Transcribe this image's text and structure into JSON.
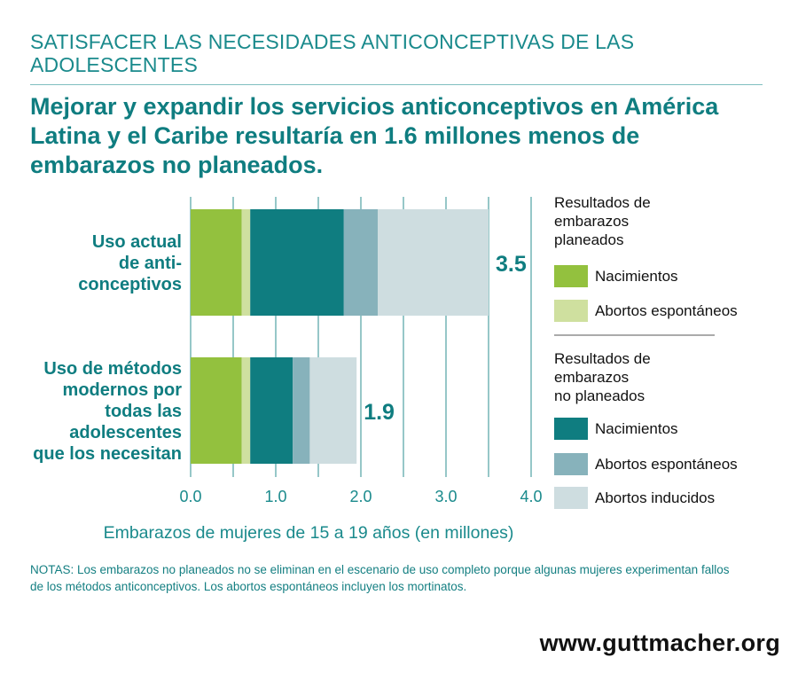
{
  "header": {
    "kicker": "SATISFACER LAS NECESIDADES ANTICONCEPTIVAS DE LAS ADOLESCENTES",
    "headline": "Mejorar y expandir los servicios anticonceptivos en América Latina y el Caribe resultaría en 1.6 millones menos de embarazos no planeados."
  },
  "chart_data": {
    "type": "bar",
    "orientation": "horizontal",
    "stacked": true,
    "categories": [
      [
        "Uso actual",
        "de anti-",
        "conceptivos"
      ],
      [
        "Uso de métodos",
        "modernos por",
        "todas las",
        "adolescentes",
        "que los necesitan"
      ]
    ],
    "totals": [
      "3.5",
      "1.9"
    ],
    "series": [
      {
        "name": "Nacimientos",
        "group": "planeados",
        "color": "#93c13e",
        "values": [
          0.6,
          0.6
        ]
      },
      {
        "name": "Abortos espontáneos",
        "group": "planeados",
        "color": "#cfe09f",
        "values": [
          0.1,
          0.1
        ]
      },
      {
        "name": "Nacimientos",
        "group": "no planeados",
        "color": "#0f7d80",
        "values": [
          1.1,
          0.5
        ]
      },
      {
        "name": "Abortos espontáneos",
        "group": "no planeados",
        "color": "#87b2bb",
        "values": [
          0.4,
          0.2
        ]
      },
      {
        "name": "Abortos inducidos",
        "group": "no planeados",
        "color": "#cedde0",
        "values": [
          1.3,
          0.55
        ]
      }
    ],
    "xlim": [
      0,
      4
    ],
    "xticks": [
      "0.0",
      "1.0",
      "2.0",
      "3.0",
      "4.0"
    ],
    "xlabel": "Embarazos de mujeres de 15 a 19 años (en millones)",
    "grid": true,
    "legend": {
      "placement": "right",
      "groups": [
        {
          "title": [
            "Resultados de",
            "embarazos",
            "planeados"
          ],
          "items": [
            0,
            1
          ]
        },
        {
          "title": [
            "Resultados de",
            "embarazos",
            "no planeados"
          ],
          "items": [
            2,
            3,
            4
          ]
        }
      ]
    }
  },
  "notes": "NOTAS: Los embarazos no planeados no se eliminan en el escenario de uso completo porque algunas mujeres experimentan fallos de los métodos anticonceptivos. Los abortos espontáneos incluyen los mortinatos.",
  "footer": {
    "website": "www.guttmacher.org"
  }
}
